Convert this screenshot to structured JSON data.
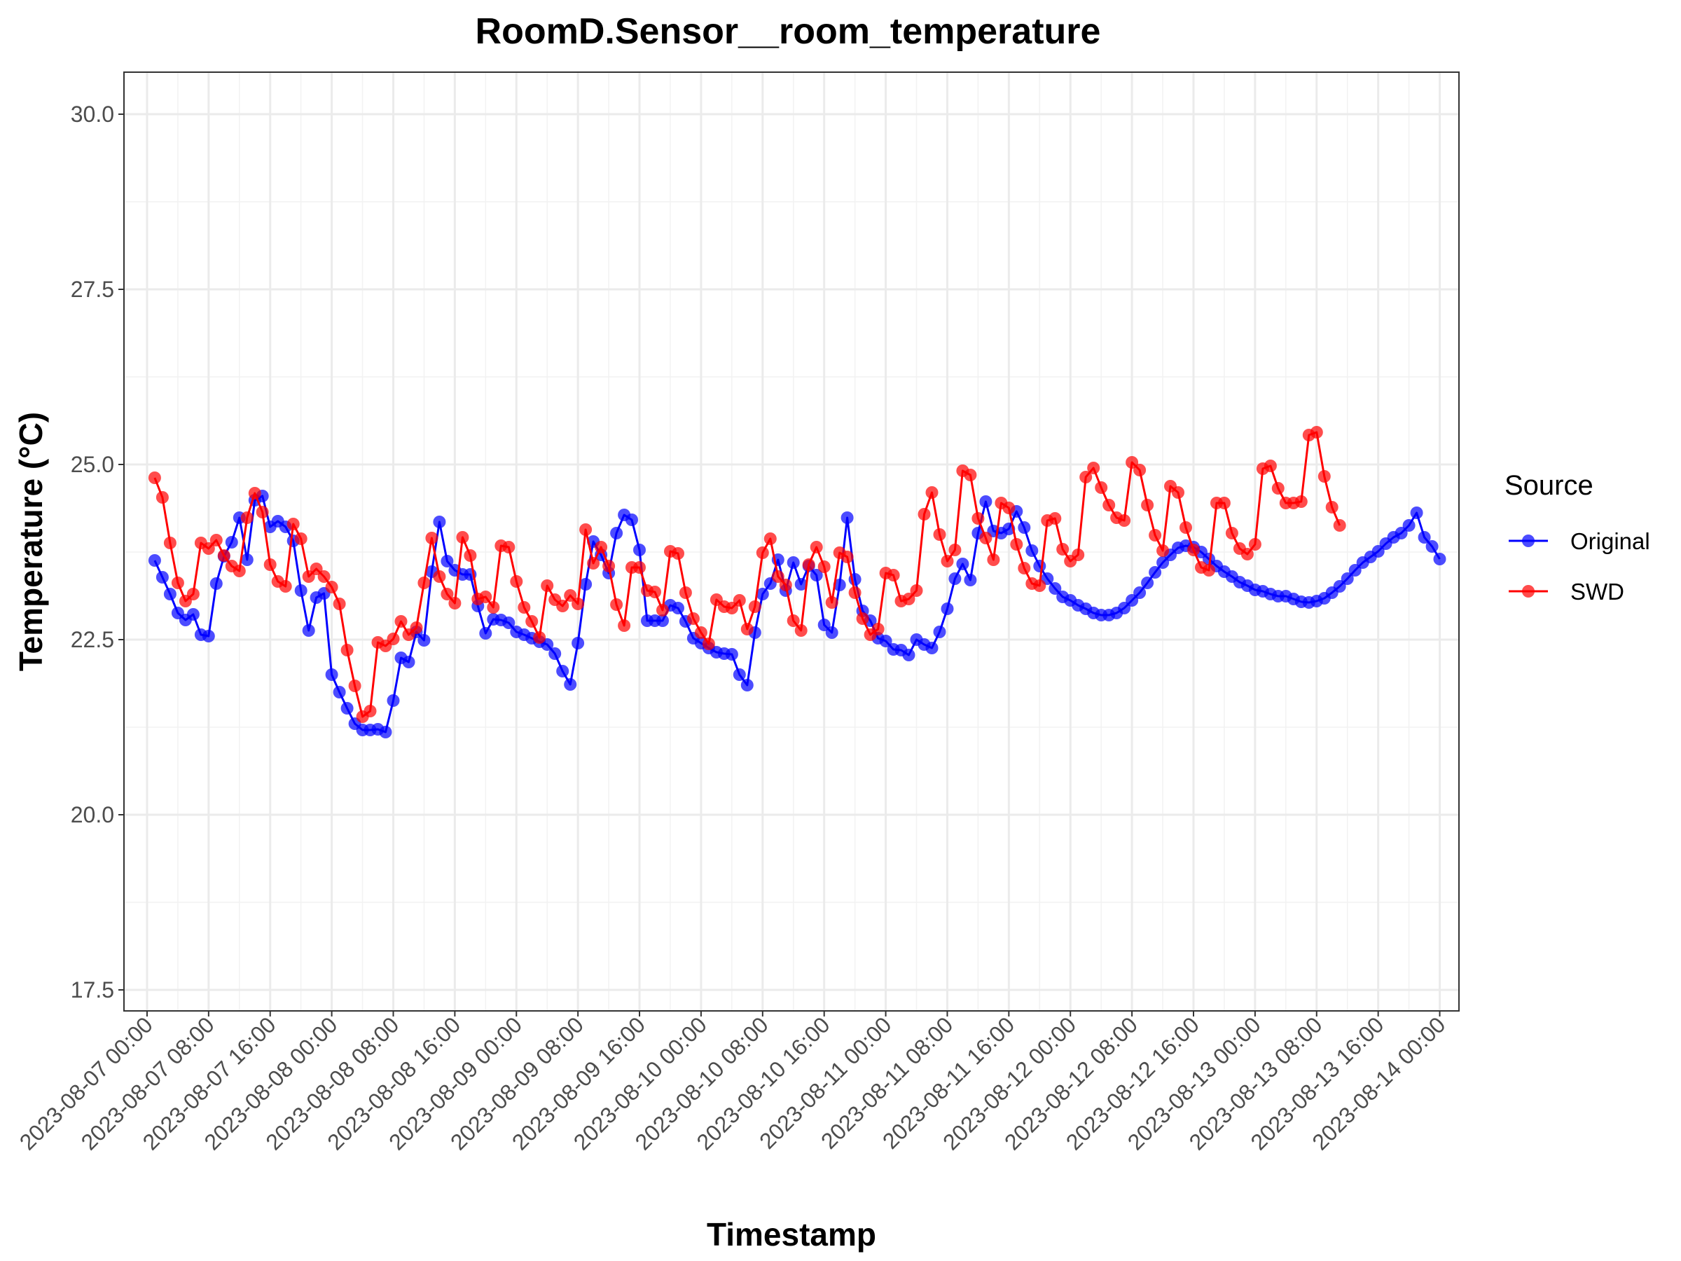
{
  "chart_data": {
    "type": "line",
    "title": "RoomD.Sensor__room_temperature",
    "xlabel": "Timestamp",
    "ylabel": "Temperature (°C)",
    "ylim": [
      17.2,
      30.6
    ],
    "yticks": [
      17.5,
      20.0,
      22.5,
      25.0,
      27.5,
      30.0
    ],
    "ytick_labels": [
      "17.5",
      "20.0",
      "22.5",
      "25.0",
      "27.5",
      "30.0"
    ],
    "xlim": [
      "2023-08-06 21:00",
      "2023-08-14 02:30"
    ],
    "xticks": [
      "2023-08-07 00:00",
      "2023-08-07 08:00",
      "2023-08-07 16:00",
      "2023-08-08 00:00",
      "2023-08-08 08:00",
      "2023-08-08 16:00",
      "2023-08-09 00:00",
      "2023-08-09 08:00",
      "2023-08-09 16:00",
      "2023-08-10 00:00",
      "2023-08-10 08:00",
      "2023-08-10 16:00",
      "2023-08-11 00:00",
      "2023-08-11 08:00",
      "2023-08-11 16:00",
      "2023-08-12 00:00",
      "2023-08-12 08:00",
      "2023-08-12 16:00",
      "2023-08-13 00:00",
      "2023-08-13 08:00",
      "2023-08-13 16:00",
      "2023-08-14 00:00"
    ],
    "x_start": "2023-08-07 01:00",
    "x_step_hours": 1,
    "grid": true,
    "legend": {
      "title": "Source",
      "position": "right"
    },
    "series": [
      {
        "name": "Original",
        "color": "#0000ff",
        "values": [
          23.63,
          23.39,
          23.15,
          22.88,
          22.78,
          22.86,
          22.57,
          22.55,
          23.3,
          23.69,
          23.89,
          24.24,
          23.64,
          24.49,
          24.55,
          24.11,
          24.19,
          24.11,
          23.91,
          23.2,
          22.63,
          23.1,
          23.16,
          22.0,
          21.75,
          21.52,
          21.3,
          21.21,
          21.21,
          21.22,
          21.18,
          21.63,
          22.24,
          22.18,
          22.61,
          22.49,
          23.47,
          24.18,
          23.62,
          23.49,
          23.43,
          23.43,
          22.98,
          22.59,
          22.79,
          22.78,
          22.74,
          22.61,
          22.57,
          22.52,
          22.47,
          22.43,
          22.3,
          22.05,
          21.86,
          22.45,
          23.29,
          23.9,
          23.71,
          23.45,
          24.02,
          24.28,
          24.21,
          23.78,
          22.77,
          22.77,
          22.77,
          22.99,
          22.95,
          22.76,
          22.52,
          22.45,
          22.38,
          22.32,
          22.3,
          22.29,
          22.0,
          21.85,
          22.6,
          23.15,
          23.3,
          23.64,
          23.2,
          23.6,
          23.29,
          23.55,
          23.42,
          22.71,
          22.6,
          23.28,
          24.24,
          23.36,
          22.91,
          22.77,
          22.52,
          22.48,
          22.36,
          22.35,
          22.28,
          22.5,
          22.43,
          22.38,
          22.61,
          22.94,
          23.37,
          23.58,
          23.35,
          24.02,
          24.47,
          24.05,
          24.02,
          24.08,
          24.33,
          24.1,
          23.77,
          23.55,
          23.37,
          23.23,
          23.11,
          23.06,
          22.99,
          22.94,
          22.88,
          22.85,
          22.85,
          22.88,
          22.95,
          23.06,
          23.17,
          23.31,
          23.46,
          23.6,
          23.71,
          23.81,
          23.84,
          23.82,
          23.75,
          23.65,
          23.55,
          23.47,
          23.4,
          23.32,
          23.27,
          23.21,
          23.19,
          23.15,
          23.12,
          23.12,
          23.08,
          23.04,
          23.03,
          23.05,
          23.09,
          23.17,
          23.26,
          23.37,
          23.49,
          23.6,
          23.68,
          23.76,
          23.87,
          23.96,
          24.02,
          24.13,
          24.31,
          23.96,
          23.83,
          23.65
        ]
      },
      {
        "name": "SWD",
        "color": "#ff0000",
        "values": [
          24.81,
          24.53,
          23.88,
          23.31,
          23.05,
          23.15,
          23.88,
          23.8,
          23.92,
          23.7,
          23.55,
          23.48,
          24.24,
          24.59,
          24.32,
          23.57,
          23.33,
          23.26,
          24.15,
          23.94,
          23.4,
          23.51,
          23.4,
          23.25,
          23.01,
          22.35,
          21.84,
          21.4,
          21.48,
          22.46,
          22.41,
          22.51,
          22.76,
          22.57,
          22.67,
          23.31,
          23.95,
          23.4,
          23.15,
          23.02,
          23.96,
          23.7,
          23.08,
          23.11,
          22.96,
          23.84,
          23.82,
          23.33,
          22.96,
          22.76,
          22.53,
          23.27,
          23.07,
          22.98,
          23.13,
          23.01,
          24.07,
          23.59,
          23.82,
          23.55,
          23.0,
          22.7,
          23.53,
          23.53,
          23.2,
          23.18,
          22.92,
          23.76,
          23.73,
          23.17,
          22.8,
          22.6,
          22.44,
          23.07,
          22.97,
          22.95,
          23.06,
          22.65,
          22.97,
          23.74,
          23.94,
          23.4,
          23.28,
          22.77,
          22.63,
          23.57,
          23.82,
          23.54,
          23.03,
          23.74,
          23.68,
          23.17,
          22.8,
          22.57,
          22.65,
          23.45,
          23.42,
          23.05,
          23.08,
          23.2,
          24.29,
          24.6,
          24.0,
          23.62,
          23.78,
          24.91,
          24.85,
          24.23,
          23.95,
          23.64,
          24.45,
          24.38,
          23.86,
          23.52,
          23.3,
          23.27,
          24.2,
          24.23,
          23.79,
          23.62,
          23.71,
          24.82,
          24.95,
          24.67,
          24.42,
          24.24,
          24.2,
          25.03,
          24.92,
          24.42,
          23.99,
          23.77,
          24.69,
          24.6,
          24.1,
          23.78,
          23.53,
          23.49,
          24.45,
          24.45,
          24.02,
          23.8,
          23.72,
          23.86,
          24.94,
          24.98,
          24.66,
          24.45,
          24.45,
          24.47,
          25.42,
          25.46,
          24.83,
          24.39,
          24.13
        ]
      }
    ]
  }
}
